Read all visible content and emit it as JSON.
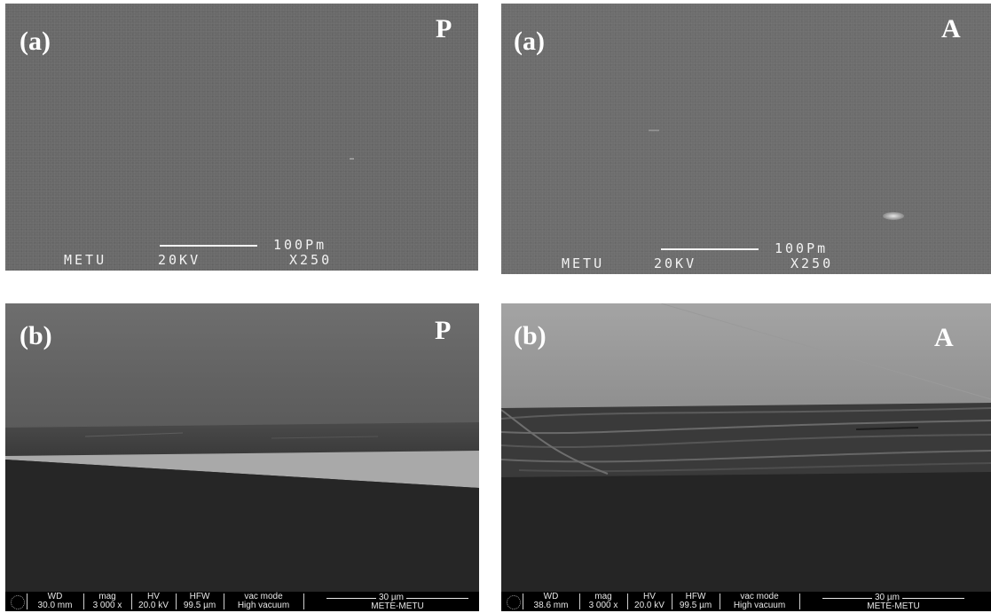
{
  "panels": {
    "top_left": {
      "label": "(a)",
      "tag": "P",
      "caption_left": "METU",
      "caption_kv": "20KV",
      "caption_scale": "100Pm",
      "caption_mag": "X250"
    },
    "top_right": {
      "label": "(a)",
      "tag": "A",
      "caption_left": "METU",
      "caption_kv": "20KV",
      "caption_scale": "100Pm",
      "caption_mag": "X250"
    },
    "bottom_left": {
      "label": "(b)",
      "tag": "P",
      "databar": {
        "wd_head": "WD",
        "wd_val": "30.0 mm",
        "mag_head": "mag",
        "mag_val": "3 000 x",
        "hv_head": "HV",
        "hv_val": "20.0 kV",
        "hfw_head": "HFW",
        "hfw_val": "99.5 µm",
        "vac_head": "vac mode",
        "vac_val": "High vacuum",
        "scale": "30 µm",
        "inst": "METE-METU"
      }
    },
    "bottom_right": {
      "label": "(b)",
      "tag": "A",
      "databar": {
        "wd_head": "WD",
        "wd_val": "38.6 mm",
        "mag_head": "mag",
        "mag_val": "3 000 x",
        "hv_head": "HV",
        "hv_val": "20.0 kV",
        "hfw_head": "HFW",
        "hfw_val": "99.5 µm",
        "vac_head": "vac mode",
        "vac_val": "High vacuum",
        "scale": "30 µm",
        "inst": "METE-METU"
      }
    }
  }
}
